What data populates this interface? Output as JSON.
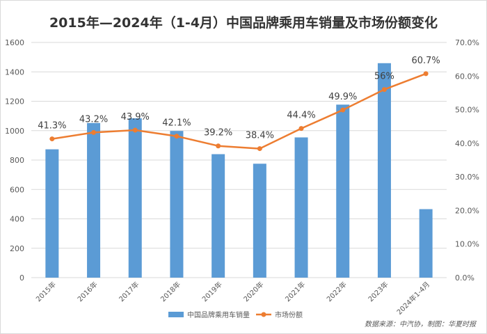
{
  "chart_data": {
    "type": "bar+line",
    "title": "2015年—2024年（1-4月）中国品牌乘用车销量及市场份额变化",
    "categories": [
      "2015年",
      "2016年",
      "2017年",
      "2018年",
      "2019年",
      "2020年",
      "2021年",
      "2022年",
      "2023年",
      "2024年1-4月"
    ],
    "series": [
      {
        "name": "中国品牌乘用车销量",
        "type": "bar",
        "axis": "left",
        "color": "#5b9bd5",
        "values": [
          873,
          1052,
          1084,
          998,
          840,
          775,
          954,
          1177,
          1459,
          466
        ]
      },
      {
        "name": "市场份额",
        "type": "line",
        "axis": "right",
        "color": "#ed7d31",
        "values": [
          41.3,
          43.2,
          43.9,
          42.1,
          39.2,
          38.4,
          44.4,
          49.9,
          56,
          60.7
        ],
        "labels": [
          "41.3%",
          "43.2%",
          "43.9%",
          "42.1%",
          "39.2%",
          "38.4%",
          "44.4%",
          "49.9%",
          "56%",
          "60.7%"
        ]
      }
    ],
    "y_left": {
      "ylim": [
        0,
        1600
      ],
      "ticks": [
        "0",
        "200",
        "400",
        "600",
        "800",
        "1000",
        "1200",
        "1400",
        "1600"
      ]
    },
    "y_right": {
      "ylim": [
        0,
        70
      ],
      "ticks": [
        "0.0%",
        "10.0%",
        "20.0%",
        "30.0%",
        "40.0%",
        "50.0%",
        "60.0%",
        "70.0%"
      ]
    },
    "legend_position": "bottom",
    "source": "数据来源：中汽协，制图：华夏时报",
    "colors": {
      "grid": "#d9d9d9",
      "axis_text": "#595959",
      "label_text": "#404040"
    }
  }
}
